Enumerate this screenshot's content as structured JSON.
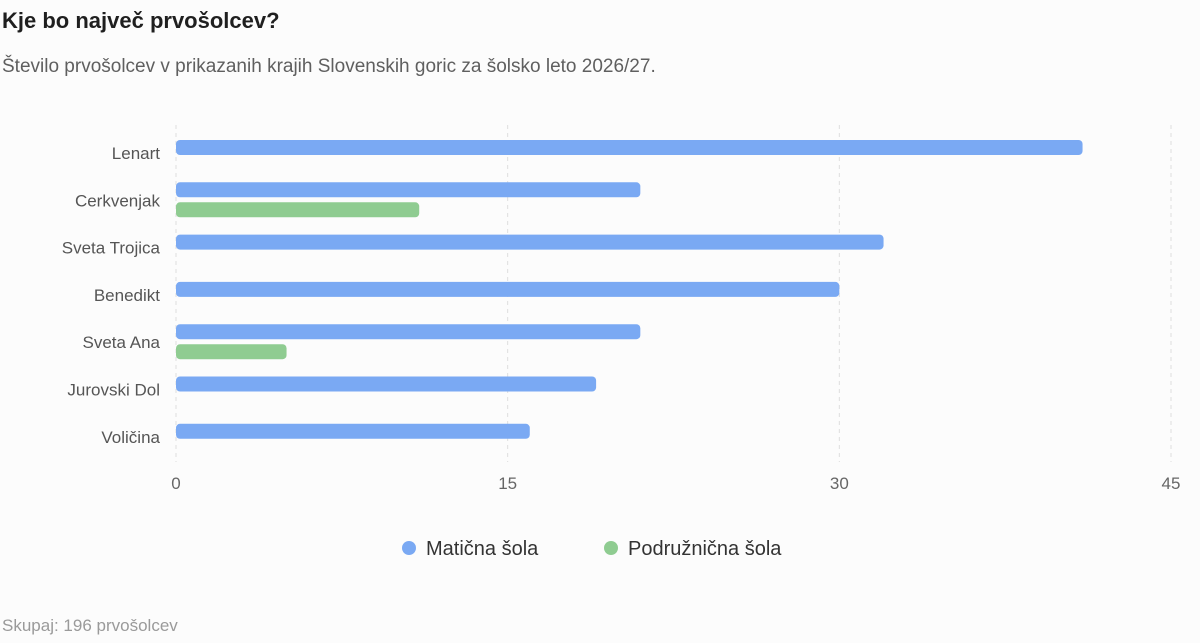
{
  "header": {
    "title": "Kje bo največ prvošolcev?",
    "subtitle": "Število prvošolcev v prikazanih krajih Slovenskih goric za šolsko leto 2026/27."
  },
  "footer": {
    "total": "Skupaj: 196 prvošolcev"
  },
  "chart_data": {
    "type": "bar",
    "orientation": "horizontal",
    "title": "Kje bo največ prvošolcev?",
    "subtitle": "Število prvošolcev v prikazanih krajih Slovenskih goric za šolsko leto 2026/27.",
    "categories": [
      "Lenart",
      "Cerkvenjak",
      "Sveta Trojica",
      "Benedikt",
      "Sveta Ana",
      "Jurovski Dol",
      "Voličina"
    ],
    "series": [
      {
        "name": "Matična šola",
        "color": "#7aa9f3",
        "values": [
          41,
          21,
          32,
          30,
          21,
          19,
          16
        ]
      },
      {
        "name": "Podružnična šola",
        "color": "#8fcc91",
        "values": [
          null,
          11,
          null,
          null,
          5,
          null,
          null
        ]
      }
    ],
    "xlim": [
      0,
      45
    ],
    "xticks": [
      0,
      15,
      30,
      45
    ],
    "grid": true,
    "legend": "bottom-center"
  }
}
